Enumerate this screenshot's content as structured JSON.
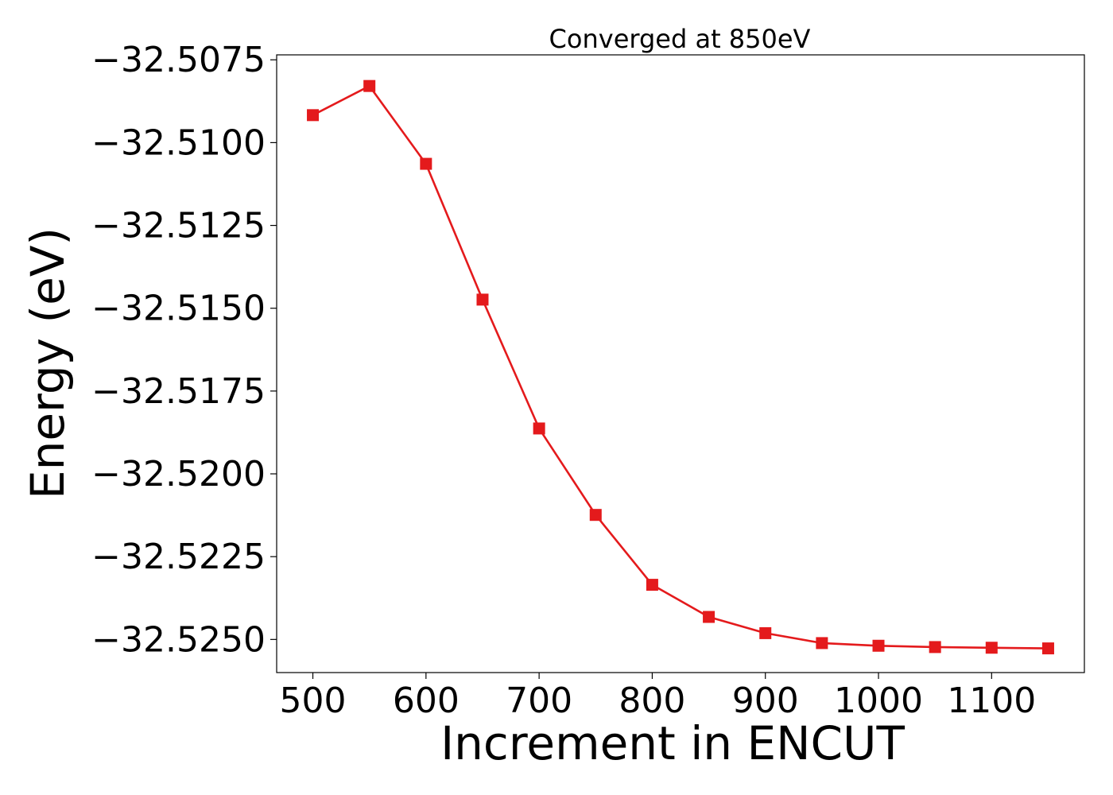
{
  "chart_data": {
    "type": "line",
    "title": "Converged at 850eV",
    "xlabel": "Increment in ENCUT",
    "ylabel": "Energy (eV)",
    "xlim": [
      468,
      1182
    ],
    "ylim": [
      -32.526,
      -32.50735
    ],
    "x_ticks": [
      500,
      600,
      700,
      800,
      900,
      1000,
      1100
    ],
    "x_tick_labels": [
      "500",
      "600",
      "700",
      "800",
      "900",
      "1000",
      "1100"
    ],
    "y_ticks": [
      -32.5075,
      -32.51,
      -32.5125,
      -32.515,
      -32.5175,
      -32.52,
      -32.5225,
      -32.525
    ],
    "y_tick_labels": [
      "−32.5075",
      "−32.5100",
      "−32.5125",
      "−32.5150",
      "−32.5175",
      "−32.5200",
      "−32.5225",
      "−32.5250"
    ],
    "grid": false,
    "series": [
      {
        "color": "#e41a1c",
        "marker": "square",
        "x": [
          500,
          550,
          600,
          650,
          700,
          750,
          800,
          850,
          900,
          950,
          1000,
          1050,
          1100,
          1150
        ],
        "y": [
          -32.50917,
          -32.50829,
          -32.51064,
          -32.51474,
          -32.51863,
          -32.52124,
          -32.52335,
          -32.52432,
          -32.52481,
          -32.52511,
          -32.52519,
          -32.52523,
          -32.52525,
          -32.52527
        ]
      }
    ]
  }
}
